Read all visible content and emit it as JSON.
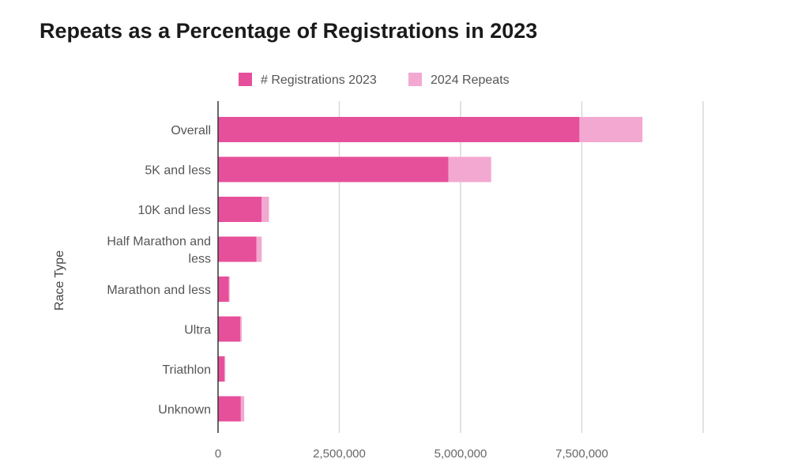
{
  "chart_data": {
    "type": "bar",
    "orientation": "horizontal",
    "stacked": true,
    "title": "Repeats as a Percentage of Registrations in 2023",
    "xlabel": "",
    "ylabel": "Race Type",
    "xlim": [
      0,
      10000000
    ],
    "xticks": [
      {
        "value": 0,
        "label": "0"
      },
      {
        "value": 2500000,
        "label": "2,500,000"
      },
      {
        "value": 5000000,
        "label": "5,000,000"
      },
      {
        "value": 7500000,
        "label": "7,500,000"
      },
      {
        "value": 10000000,
        "label": ""
      }
    ],
    "grid": true,
    "legend": "top",
    "categories": [
      [
        "Overall"
      ],
      [
        "5K and less"
      ],
      [
        "10K and less"
      ],
      [
        "Half Marathon and",
        "less"
      ],
      [
        "Marathon and less"
      ],
      [
        "Ultra"
      ],
      [
        "Triathlon"
      ],
      [
        "Unknown"
      ]
    ],
    "series": [
      {
        "name": "# Registrations 2023",
        "color": "#e6509b",
        "values": [
          7450000,
          4750000,
          900000,
          790000,
          220000,
          460000,
          130000,
          470000
        ]
      },
      {
        "name": "2024 Repeats",
        "color": "#f3a8d1",
        "values": [
          1300000,
          880000,
          150000,
          110000,
          20000,
          30000,
          20000,
          70000
        ]
      }
    ]
  }
}
